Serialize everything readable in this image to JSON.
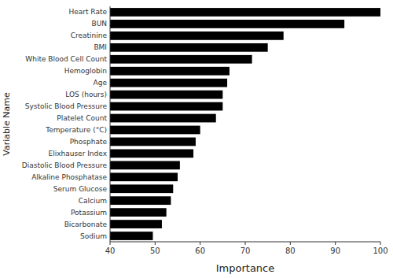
{
  "chart_data": {
    "type": "bar",
    "orientation": "horizontal",
    "categories": [
      "Sodium",
      "Bicarbonate",
      "Potassium",
      "Calcium",
      "Serum Glucose",
      "Alkaline Phosphatase",
      "Diastolic Blood Pressure",
      "Elixhauser Index",
      "Phosphate",
      "Temperature (°C)",
      "Platelet Count",
      "Systolic Blood Pressure",
      "LOS (hours)",
      "Age",
      "Hemoglobin",
      "White Blood Cell Count",
      "BMI",
      "Creatinine",
      "BUN",
      "Heart Rate"
    ],
    "values": [
      49.5,
      51.5,
      52.5,
      53.5,
      54.0,
      55.0,
      55.5,
      58.5,
      59.0,
      60.0,
      63.5,
      65.0,
      65.0,
      66.0,
      66.5,
      71.5,
      75.0,
      78.5,
      92.0,
      100.0
    ],
    "color": "#000000",
    "xlabel": "Importance",
    "ylabel": "Variable Name",
    "xlim": [
      40,
      100
    ],
    "xticks": [
      40,
      50,
      60,
      70,
      80,
      90,
      100
    ],
    "grid": false
  }
}
